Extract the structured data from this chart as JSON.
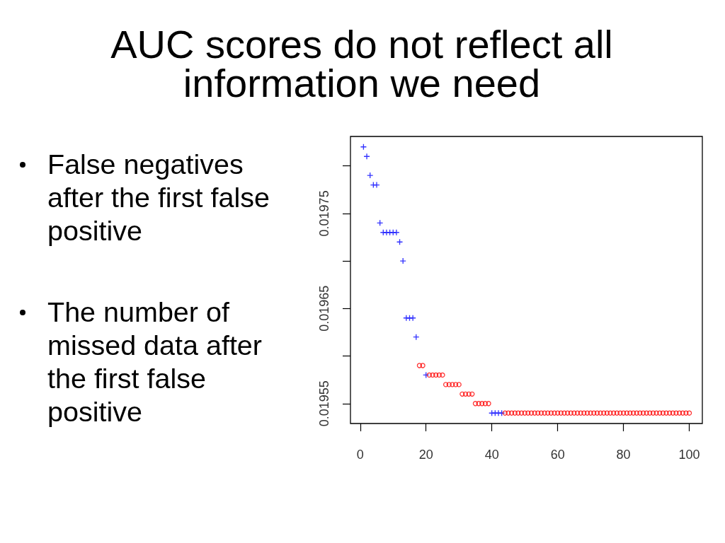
{
  "chart_data": {
    "type": "scatter",
    "title": "AUC scores do not reflect all information we need",
    "annotations": [
      "False negatives after the first false positive",
      "The number of missed data after the first false positive"
    ],
    "xlim": [
      -2.96,
      103.96
    ],
    "xticks": [
      0,
      20,
      40,
      60,
      80,
      100
    ],
    "ylim": [
      0.019529,
      0.019831
    ],
    "yticks": [
      0.01955,
      {
        "value": 0.0196,
        "label": null
      },
      0.01965,
      {
        "value": 0.0197,
        "label": null
      },
      0.01975,
      {
        "value": 0.0198,
        "label": null
      }
    ],
    "series": [
      {
        "color": "#0000ff",
        "marker": "cross",
        "x": [
          1,
          2,
          3,
          4,
          5,
          6,
          7,
          8,
          9,
          10,
          11,
          12,
          13,
          14,
          15,
          16,
          17,
          20,
          40,
          41,
          42,
          43
        ],
        "values": [
          0.01982,
          0.01981,
          0.01979,
          0.01978,
          0.01978,
          0.01974,
          0.01973,
          0.01973,
          0.01973,
          0.01973,
          0.01973,
          0.01972,
          0.0197,
          0.01964,
          0.01964,
          0.01964,
          0.01962,
          0.01958,
          0.01954,
          0.01954,
          0.01954,
          0.01954
        ]
      },
      {
        "color": "#ff0000",
        "marker": "circle",
        "x": [
          18,
          19,
          21,
          22,
          23,
          24,
          25,
          26,
          27,
          28,
          29,
          30,
          31,
          32,
          33,
          34,
          35,
          36,
          37,
          38,
          39,
          44,
          45,
          46,
          47,
          48,
          49,
          50,
          51,
          52,
          53,
          54,
          55,
          56,
          57,
          58,
          59,
          60,
          61,
          62,
          63,
          64,
          65,
          66,
          67,
          68,
          69,
          70,
          71,
          72,
          73,
          74,
          75,
          76,
          77,
          78,
          79,
          80,
          81,
          82,
          83,
          84,
          85,
          86,
          87,
          88,
          89,
          90,
          91,
          92,
          93,
          94,
          95,
          96,
          97,
          98,
          99,
          100
        ],
        "values": [
          0.01959,
          0.01959,
          0.01958,
          0.01958,
          0.01958,
          0.01958,
          0.01958,
          0.01957,
          0.01957,
          0.01957,
          0.01957,
          0.01957,
          0.01956,
          0.01956,
          0.01956,
          0.01956,
          0.01955,
          0.01955,
          0.01955,
          0.01955,
          0.01955,
          0.01954,
          0.01954,
          0.01954,
          0.01954,
          0.01954,
          0.01954,
          0.01954,
          0.01954,
          0.01954,
          0.01954,
          0.01954,
          0.01954,
          0.01954,
          0.01954,
          0.01954,
          0.01954,
          0.01954,
          0.01954,
          0.01954,
          0.01954,
          0.01954,
          0.01954,
          0.01954,
          0.01954,
          0.01954,
          0.01954,
          0.01954,
          0.01954,
          0.01954,
          0.01954,
          0.01954,
          0.01954,
          0.01954,
          0.01954,
          0.01954,
          0.01954,
          0.01954,
          0.01954,
          0.01954,
          0.01954,
          0.01954,
          0.01954,
          0.01954,
          0.01954,
          0.01954,
          0.01954,
          0.01954,
          0.01954,
          0.01954,
          0.01954,
          0.01954,
          0.01954,
          0.01954,
          0.01954,
          0.01954,
          0.01954,
          0.01954
        ]
      }
    ]
  }
}
